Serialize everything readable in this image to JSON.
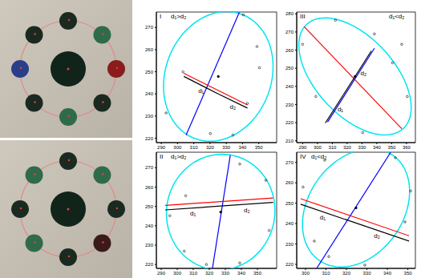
{
  "chart_data": [
    {
      "type": "scatter",
      "title": "I",
      "annotations": [
        "d₁>d₂"
      ],
      "xlim": [
        287,
        361
      ],
      "ylim": [
        218,
        277
      ],
      "xticks": [
        290,
        300,
        310,
        320,
        330,
        340,
        350
      ],
      "yticks": [
        220,
        230,
        240,
        250,
        260,
        270
      ],
      "ellipse": {
        "color": "#00e5ee",
        "center": [
          325.1,
          247.9
        ],
        "major_end": [
          339.0,
          276.1
        ],
        "minor_end": [
          355.8,
          240.0
        ]
      },
      "lines": [
        {
          "color": "#0000ff",
          "x": [
            305.3,
            338.0
          ],
          "y": [
            221.4,
            276.8
          ]
        },
        {
          "color": "#ff0000",
          "x": [
            303.9,
            343.0
          ],
          "y": [
            249.3,
            235.0
          ]
        }
      ],
      "d_segments": [
        {
          "label": "d₁",
          "from": [
            303.9,
            247.9
          ],
          "to": [
            325.1,
            240.0
          ]
        },
        {
          "label": "d₂",
          "from": [
            325.1,
            240.0
          ],
          "to": [
            343.0,
            233.6
          ]
        }
      ],
      "points": {
        "color": "#000000",
        "x": [
          303.4,
          293.0,
          340.5,
          348.9,
          350.4,
          334.1,
          320.2,
          343.0
        ],
        "y": [
          250.0,
          231.4,
          275.7,
          261.4,
          251.8,
          221.4,
          222.1,
          235.7
        ]
      }
    },
    {
      "type": "scatter",
      "title": "II",
      "annotations": [
        "d₁>d₂"
      ],
      "xlim": [
        287,
        362
      ],
      "ylim": [
        218,
        278
      ],
      "xticks": [
        290,
        300,
        310,
        320,
        330,
        340,
        350
      ],
      "yticks": [
        220,
        230,
        240,
        250,
        260,
        270
      ],
      "ellipse": {
        "color": "#00e5ee",
        "center": [
          327.1,
          247.1
        ],
        "major_end": [
          330.1,
          276.9
        ],
        "minor_end": [
          360.8,
          245.2
        ]
      },
      "lines": [
        {
          "color": "#0000ff",
          "x": [
            321.7,
            333.1
          ],
          "y": [
            216.6,
            276.5
          ]
        },
        {
          "color": "#ff0000",
          "x": [
            292.5,
            359.8
          ],
          "y": [
            250.5,
            254.4
          ]
        }
      ],
      "d_segments": [
        {
          "label": "d₁",
          "from": [
            292.5,
            248.2
          ],
          "to": [
            327.1,
            250.2
          ]
        },
        {
          "label": "d₂",
          "from": [
            327.1,
            250.2
          ],
          "to": [
            359.8,
            252.1
          ]
        }
      ],
      "points": {
        "color": "#000000",
        "x": [
          295.4,
          304.4,
          305.3,
          339.0,
          355.3,
          357.3,
          339.0,
          318.2
        ],
        "y": [
          245.2,
          226.9,
          255.5,
          271.9,
          263.5,
          237.6,
          220.8,
          220.0
        ]
      }
    },
    {
      "type": "scatter",
      "title": "III",
      "annotations": [
        "d₁<d₂"
      ],
      "xlim": [
        286,
        366
      ],
      "ylim": [
        209,
        281
      ],
      "xticks": [
        290,
        300,
        310,
        320,
        330,
        340,
        350,
        360
      ],
      "yticks": [
        210,
        220,
        230,
        240,
        250,
        260,
        270,
        280
      ],
      "ellipse": {
        "color": "#00e5ee",
        "center": [
          325.3,
          245.5
        ],
        "major_end": [
          358.4,
          217.2
        ],
        "minor_end": [
          343.7,
          261.0
        ]
      },
      "lines": [
        {
          "color": "#ff0000",
          "x": [
            291.1,
            356.8
          ],
          "y": [
            272.9,
            216.7
          ]
        },
        {
          "color": "#0000ff",
          "x": [
            306.8,
            338.4
          ],
          "y": [
            220.3,
            261.0
          ]
        }
      ],
      "d_segments": [
        {
          "label": "d₁",
          "from": [
            305.3,
            219.8
          ],
          "to": [
            317.4,
            235.3
          ]
        },
        {
          "label": "d₂",
          "from": [
            317.4,
            235.3
          ],
          "to": [
            336.3,
            259.6
          ]
        }
      ],
      "points": {
        "color": "#000000",
        "x": [
          290.0,
          298.9,
          330.5,
          360.5,
          356.8,
          350.5,
          338.4,
          312.1
        ],
        "y": [
          263.2,
          234.4,
          214.5,
          234.4,
          263.2,
          253.0,
          268.9,
          276.5
        ]
      }
    },
    {
      "type": "scatter",
      "title": "IV",
      "annotations": [
        "d₁<d₂"
      ],
      "xlim": [
        295.7,
        353.7
      ],
      "ylim": [
        218,
        275
      ],
      "xticks": [
        300,
        310,
        320,
        330,
        340,
        350
      ],
      "yticks": [
        220,
        230,
        240,
        250,
        260,
        270
      ],
      "ellipse": {
        "color": "#00e5ee",
        "center": [
          324.7,
          247.7
        ],
        "major_end": [
          341.6,
          274.2
        ],
        "minor_end": [
          344.7,
          235.9
        ]
      },
      "lines": [
        {
          "color": "#0000ff",
          "x": [
            305.5,
            341.6
          ],
          "y": [
            218.1,
            274.9
          ]
        },
        {
          "color": "#ff0000",
          "x": [
            297.6,
            350.6
          ],
          "y": [
            252.2,
            234.0
          ]
        }
      ],
      "d_segments": [
        {
          "label": "d₁",
          "from": [
            297.6,
            249.5
          ],
          "to": [
            319.2,
            242.1
          ]
        },
        {
          "label": "d₂",
          "from": [
            319.2,
            242.1
          ],
          "to": [
            350.6,
            231.4
          ]
        }
      ],
      "points": {
        "color": "#000000",
        "x": [
          298.8,
          304.3,
          309.4,
          343.9,
          351.4,
          348.6,
          329.0,
          311.4
        ],
        "y": [
          257.9,
          231.4,
          271.1,
          272.3,
          256.0,
          240.8,
          219.6,
          223.8
        ]
      }
    }
  ]
}
